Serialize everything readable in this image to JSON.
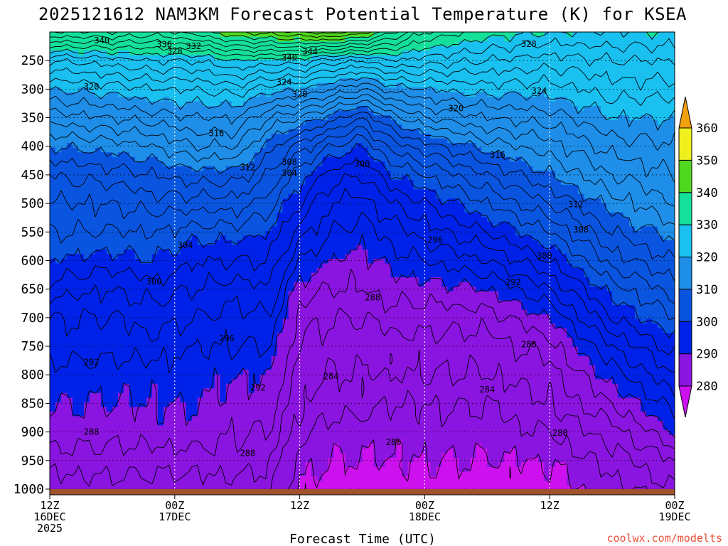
{
  "chart_data": {
    "type": "heatmap",
    "title": "2025121612 NAM3KM Forecast Potential Temperature (K) for KSEA",
    "xlabel": "Forecast Time (UTC)",
    "ylabel": "",
    "y_range": [
      200,
      1010
    ],
    "x_range_hours": [
      0,
      60
    ],
    "y_ticks": [
      "250",
      "300",
      "350",
      "400",
      "450",
      "500",
      "550",
      "600",
      "650",
      "700",
      "750",
      "800",
      "850",
      "900",
      "950",
      "1000"
    ],
    "y_tick_values": [
      250,
      300,
      350,
      400,
      450,
      500,
      550,
      600,
      650,
      700,
      750,
      800,
      850,
      900,
      950,
      1000
    ],
    "x_ticks": [
      {
        "hour": 0,
        "l1": "12Z",
        "l2": "16DEC",
        "l3": "2025"
      },
      {
        "hour": 12,
        "l1": "00Z",
        "l2": "17DEC",
        "l3": ""
      },
      {
        "hour": 24,
        "l1": "12Z",
        "l2": "",
        "l3": ""
      },
      {
        "hour": 36,
        "l1": "00Z",
        "l2": "18DEC",
        "l3": ""
      },
      {
        "hour": 48,
        "l1": "12Z",
        "l2": "",
        "l3": ""
      },
      {
        "hour": 60,
        "l1": "00Z",
        "l2": "19DEC",
        "l3": ""
      }
    ],
    "contour_interval_K": 2,
    "colorbar": {
      "levels": [
        280,
        290,
        300,
        310,
        320,
        330,
        340,
        350,
        360
      ],
      "labels": [
        "280",
        "290",
        "300",
        "310",
        "320",
        "330",
        "340",
        "350",
        "360"
      ],
      "colors": [
        "#cc11ee",
        "#8a14e0",
        "#0022e8",
        "#0a55e0",
        "#1e8ee8",
        "#19c0f0",
        "#14e09a",
        "#50d81e",
        "#f0f01e",
        "#f0a00a"
      ]
    },
    "theta_profiles": [
      {
        "hour": 0,
        "p": [
          1000,
          950,
          900,
          850,
          800,
          750,
          700,
          650,
          600,
          550,
          500,
          450,
          400,
          350,
          300,
          250,
          200
        ],
        "theta": [
          285,
          287,
          289,
          290,
          291,
          293,
          294,
          297,
          300,
          302,
          304,
          306,
          310,
          315,
          320,
          326,
          338
        ]
      },
      {
        "hour": 6,
        "p": [
          1000,
          950,
          900,
          850,
          800,
          750,
          700,
          650,
          600,
          550,
          500,
          450,
          400,
          350,
          300,
          250,
          200
        ],
        "theta": [
          285,
          287,
          289,
          290,
          291,
          293,
          294,
          296,
          299,
          302,
          304,
          307,
          311,
          316,
          321,
          327,
          338
        ]
      },
      {
        "hour": 10,
        "p": [
          1000,
          950,
          900,
          850,
          800,
          750,
          700,
          650,
          600,
          550,
          500,
          450,
          400,
          350,
          300,
          250,
          200
        ],
        "theta": [
          285,
          287,
          289,
          290,
          291,
          293,
          295,
          297,
          300,
          302,
          305,
          308,
          312,
          317,
          322,
          328,
          337
        ]
      },
      {
        "hour": 14,
        "p": [
          1000,
          950,
          900,
          850,
          800,
          750,
          700,
          650,
          600,
          550,
          500,
          450,
          400,
          350,
          300,
          250,
          200
        ],
        "theta": [
          285,
          287,
          289,
          290,
          291,
          292,
          294,
          296,
          298,
          301,
          305,
          309,
          314,
          318,
          322,
          328,
          339
        ]
      },
      {
        "hour": 18,
        "p": [
          1000,
          950,
          900,
          850,
          800,
          750,
          700,
          650,
          600,
          550,
          500,
          450,
          400,
          350,
          300,
          250,
          200
        ],
        "theta": [
          285,
          287,
          288,
          289,
          290,
          292,
          293,
          295,
          298,
          301,
          305,
          309,
          314,
          318,
          323,
          330,
          342
        ]
      },
      {
        "hour": 21,
        "p": [
          1000,
          950,
          900,
          850,
          800,
          750,
          700,
          650,
          600,
          550,
          500,
          450,
          400,
          350,
          300,
          250,
          200
        ],
        "theta": [
          285,
          286,
          288,
          289,
          290,
          292,
          294,
          296,
          298,
          300,
          303,
          306,
          309,
          314,
          321,
          329,
          343
        ]
      },
      {
        "hour": 24,
        "p": [
          1000,
          950,
          900,
          850,
          800,
          750,
          700,
          650,
          600,
          550,
          500,
          450,
          400,
          350,
          300,
          250,
          200
        ],
        "theta": [
          280,
          281,
          283,
          284,
          285,
          286,
          287,
          289,
          292,
          295,
          298,
          301,
          305,
          312,
          320,
          329,
          344
        ]
      },
      {
        "hour": 27,
        "p": [
          1000,
          950,
          900,
          850,
          800,
          750,
          700,
          650,
          600,
          550,
          500,
          450,
          400,
          350,
          300,
          250,
          200
        ],
        "theta": [
          279,
          280,
          281,
          283,
          284,
          285,
          286,
          288,
          290,
          292,
          294,
          297,
          302,
          309,
          318,
          327,
          345
        ]
      },
      {
        "hour": 30,
        "p": [
          1000,
          950,
          900,
          850,
          800,
          750,
          700,
          650,
          600,
          550,
          500,
          450,
          400,
          350,
          300,
          250,
          200
        ],
        "theta": [
          279,
          280,
          281,
          283,
          284,
          285,
          286,
          288,
          289,
          291,
          293,
          296,
          300,
          306,
          316,
          326,
          343
        ]
      },
      {
        "hour": 33,
        "p": [
          1000,
          950,
          900,
          850,
          800,
          750,
          700,
          650,
          600,
          550,
          500,
          450,
          400,
          350,
          300,
          250,
          200
        ],
        "theta": [
          279,
          280,
          281,
          282,
          284,
          285,
          287,
          289,
          291,
          293,
          296,
          300,
          305,
          311,
          319,
          328,
          338
        ]
      },
      {
        "hour": 36,
        "p": [
          1000,
          950,
          900,
          850,
          800,
          750,
          700,
          650,
          600,
          550,
          500,
          450,
          400,
          350,
          300,
          250,
          200
        ],
        "theta": [
          279,
          280,
          281,
          282,
          284,
          285,
          287,
          289,
          292,
          295,
          298,
          302,
          307,
          314,
          320,
          327,
          334
        ]
      },
      {
        "hour": 42,
        "p": [
          1000,
          950,
          900,
          850,
          800,
          750,
          700,
          650,
          600,
          550,
          500,
          450,
          400,
          350,
          300,
          250,
          200
        ],
        "theta": [
          279,
          280,
          281,
          282,
          284,
          285,
          287,
          290,
          294,
          298,
          302,
          306,
          311,
          316,
          321,
          326,
          331
        ]
      },
      {
        "hour": 48,
        "p": [
          1000,
          950,
          900,
          850,
          800,
          750,
          700,
          650,
          600,
          550,
          500,
          450,
          400,
          350,
          300,
          250,
          200
        ],
        "theta": [
          279,
          280,
          282,
          284,
          285,
          287,
          290,
          294,
          298,
          302,
          306,
          310,
          313,
          317,
          321,
          325,
          330
        ]
      },
      {
        "hour": 54,
        "p": [
          1000,
          950,
          900,
          850,
          800,
          750,
          700,
          650,
          600,
          550,
          500,
          450,
          400,
          350,
          300,
          250,
          200
        ],
        "theta": [
          281,
          283,
          285,
          288,
          291,
          294,
          298,
          301,
          305,
          308,
          311,
          314,
          317,
          320,
          323,
          326,
          330
        ]
      },
      {
        "hour": 60,
        "p": [
          1000,
          950,
          900,
          850,
          800,
          750,
          700,
          650,
          600,
          550,
          500,
          450,
          400,
          350,
          300,
          250,
          200
        ],
        "theta": [
          284,
          286,
          290,
          293,
          296,
          299,
          302,
          305,
          308,
          311,
          314,
          316,
          318,
          320,
          323,
          326,
          330
        ]
      }
    ],
    "contour_labels": [
      {
        "text": "340",
        "hour": 5.0,
        "p": 215
      },
      {
        "text": "336",
        "hour": 11.0,
        "p": 222
      },
      {
        "text": "332",
        "hour": 13.8,
        "p": 225
      },
      {
        "text": "328",
        "hour": 12.0,
        "p": 233
      },
      {
        "text": "344",
        "hour": 25.0,
        "p": 234
      },
      {
        "text": "340",
        "hour": 23.0,
        "p": 245
      },
      {
        "text": "328",
        "hour": 46.0,
        "p": 221
      },
      {
        "text": "324",
        "hour": 22.5,
        "p": 288
      },
      {
        "text": "320",
        "hour": 24.0,
        "p": 309
      },
      {
        "text": "320",
        "hour": 4.0,
        "p": 296
      },
      {
        "text": "320",
        "hour": 39.0,
        "p": 334
      },
      {
        "text": "324",
        "hour": 47.0,
        "p": 303
      },
      {
        "text": "316",
        "hour": 16.0,
        "p": 377
      },
      {
        "text": "316",
        "hour": 43.0,
        "p": 415
      },
      {
        "text": "312",
        "hour": 19.0,
        "p": 437
      },
      {
        "text": "312",
        "hour": 50.5,
        "p": 502
      },
      {
        "text": "308",
        "hour": 23.0,
        "p": 428
      },
      {
        "text": "304",
        "hour": 23.0,
        "p": 447
      },
      {
        "text": "300",
        "hour": 30.0,
        "p": 431
      },
      {
        "text": "296",
        "hour": 37.0,
        "p": 564
      },
      {
        "text": "308",
        "hour": 51.0,
        "p": 546
      },
      {
        "text": "300",
        "hour": 47.5,
        "p": 592
      },
      {
        "text": "292",
        "hour": 44.5,
        "p": 638
      },
      {
        "text": "304",
        "hour": 13.0,
        "p": 573
      },
      {
        "text": "300",
        "hour": 10.0,
        "p": 637
      },
      {
        "text": "288",
        "hour": 31.0,
        "p": 665
      },
      {
        "text": "296",
        "hour": 17.0,
        "p": 736
      },
      {
        "text": "288",
        "hour": 46.0,
        "p": 747
      },
      {
        "text": "292",
        "hour": 4.0,
        "p": 778
      },
      {
        "text": "284",
        "hour": 27.0,
        "p": 803
      },
      {
        "text": "292",
        "hour": 20.0,
        "p": 823
      },
      {
        "text": "284",
        "hour": 42.0,
        "p": 826
      },
      {
        "text": "288",
        "hour": 4.0,
        "p": 900
      },
      {
        "text": "280",
        "hour": 33.0,
        "p": 918
      },
      {
        "text": "280",
        "hour": 49.0,
        "p": 902
      },
      {
        "text": "288",
        "hour": 19.0,
        "p": 937
      }
    ]
  },
  "credit": "coolwx.com/modelts"
}
